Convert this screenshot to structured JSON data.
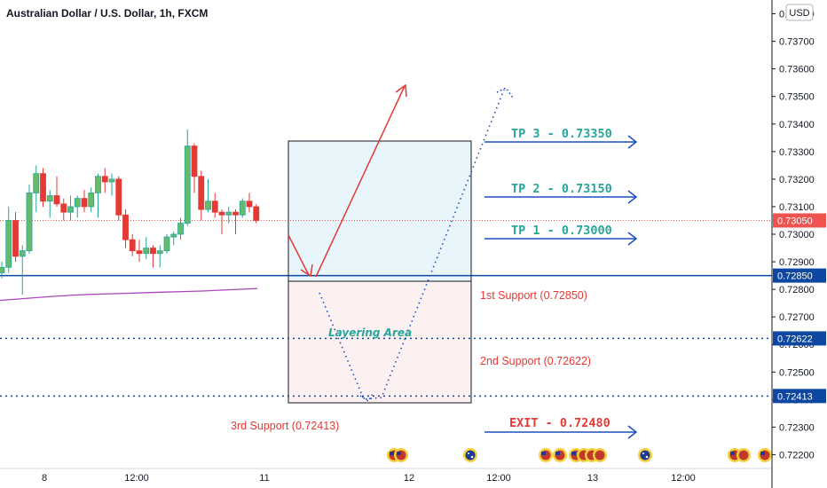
{
  "header": {
    "title": "Australian Dollar / U.S. Dollar, 1h, FXCM"
  },
  "currency_badge": "USD",
  "colors": {
    "up": "#26a69a",
    "up_fill": "#66bb6a",
    "down": "#e53935",
    "level_blue": "#0d47a1",
    "price_red": "#ef5350",
    "ma": "#ab47bc"
  },
  "chart_data": {
    "type": "candlestick",
    "symbol": "AUDUSD",
    "timeframe": "1h",
    "ylim": [
      0.7215,
      0.7385
    ],
    "y_ticks": [
      0.722,
      0.723,
      0.724,
      0.725,
      0.726,
      0.727,
      0.728,
      0.729,
      0.73,
      0.731,
      0.732,
      0.733,
      0.734,
      0.735,
      0.736,
      0.737,
      0.738
    ],
    "y_tick_labels": [
      "0.72200",
      "0.72300",
      "0.72400",
      "0.72500",
      "0.72600",
      "0.72700",
      "0.72800",
      "0.72900",
      "0.73000",
      "0.73100",
      "0.73200",
      "0.73300",
      "0.73400",
      "0.73500",
      "0.73600",
      "0.73700",
      "0.73800"
    ],
    "x_tick_labels": [
      "8",
      "12:00",
      "11",
      "12",
      "12:00",
      "13",
      "12:00"
    ],
    "candles": [
      {
        "o": 0.7286,
        "h": 0.729,
        "l": 0.7284,
        "c": 0.7288
      },
      {
        "o": 0.7288,
        "h": 0.731,
        "l": 0.7286,
        "c": 0.7305
      },
      {
        "o": 0.7305,
        "h": 0.7308,
        "l": 0.729,
        "c": 0.7292
      },
      {
        "o": 0.7292,
        "h": 0.7296,
        "l": 0.7278,
        "c": 0.7294
      },
      {
        "o": 0.7294,
        "h": 0.7318,
        "l": 0.7293,
        "c": 0.7315
      },
      {
        "o": 0.7315,
        "h": 0.7325,
        "l": 0.7308,
        "c": 0.7322
      },
      {
        "o": 0.7322,
        "h": 0.7324,
        "l": 0.731,
        "c": 0.7312
      },
      {
        "o": 0.7312,
        "h": 0.7316,
        "l": 0.7306,
        "c": 0.7314
      },
      {
        "o": 0.7314,
        "h": 0.7321,
        "l": 0.731,
        "c": 0.7311
      },
      {
        "o": 0.7311,
        "h": 0.7313,
        "l": 0.7305,
        "c": 0.7308
      },
      {
        "o": 0.7308,
        "h": 0.7314,
        "l": 0.7305,
        "c": 0.731
      },
      {
        "o": 0.731,
        "h": 0.7314,
        "l": 0.7306,
        "c": 0.7313
      },
      {
        "o": 0.7313,
        "h": 0.7316,
        "l": 0.7308,
        "c": 0.731
      },
      {
        "o": 0.731,
        "h": 0.7317,
        "l": 0.7308,
        "c": 0.7315
      },
      {
        "o": 0.7315,
        "h": 0.7322,
        "l": 0.7306,
        "c": 0.7321
      },
      {
        "o": 0.7321,
        "h": 0.7324,
        "l": 0.7315,
        "c": 0.7319
      },
      {
        "o": 0.7319,
        "h": 0.7322,
        "l": 0.7314,
        "c": 0.732
      },
      {
        "o": 0.732,
        "h": 0.7321,
        "l": 0.7305,
        "c": 0.7307
      },
      {
        "o": 0.7307,
        "h": 0.7309,
        "l": 0.7295,
        "c": 0.7298
      },
      {
        "o": 0.7298,
        "h": 0.73,
        "l": 0.7292,
        "c": 0.7294
      },
      {
        "o": 0.7294,
        "h": 0.7298,
        "l": 0.729,
        "c": 0.7293
      },
      {
        "o": 0.7293,
        "h": 0.7299,
        "l": 0.7291,
        "c": 0.7295
      },
      {
        "o": 0.7295,
        "h": 0.7296,
        "l": 0.7288,
        "c": 0.7293
      },
      {
        "o": 0.7293,
        "h": 0.7296,
        "l": 0.7288,
        "c": 0.7294
      },
      {
        "o": 0.7294,
        "h": 0.73,
        "l": 0.7293,
        "c": 0.7299
      },
      {
        "o": 0.7299,
        "h": 0.7301,
        "l": 0.7296,
        "c": 0.73
      },
      {
        "o": 0.73,
        "h": 0.7306,
        "l": 0.7298,
        "c": 0.7304
      },
      {
        "o": 0.7304,
        "h": 0.7338,
        "l": 0.7303,
        "c": 0.7332
      },
      {
        "o": 0.7332,
        "h": 0.7333,
        "l": 0.7315,
        "c": 0.7321
      },
      {
        "o": 0.7321,
        "h": 0.7323,
        "l": 0.7305,
        "c": 0.7309
      },
      {
        "o": 0.7309,
        "h": 0.732,
        "l": 0.7308,
        "c": 0.7312
      },
      {
        "o": 0.7312,
        "h": 0.7315,
        "l": 0.7306,
        "c": 0.7308
      },
      {
        "o": 0.7308,
        "h": 0.7309,
        "l": 0.73,
        "c": 0.7307
      },
      {
        "o": 0.7307,
        "h": 0.731,
        "l": 0.7304,
        "c": 0.7308
      },
      {
        "o": 0.7308,
        "h": 0.7309,
        "l": 0.73,
        "c": 0.7307
      },
      {
        "o": 0.7307,
        "h": 0.7313,
        "l": 0.7306,
        "c": 0.7312
      },
      {
        "o": 0.7312,
        "h": 0.7315,
        "l": 0.7308,
        "c": 0.731
      },
      {
        "o": 0.731,
        "h": 0.7311,
        "l": 0.7304,
        "c": 0.7305
      }
    ],
    "moving_average": [
      0.7276,
      0.72765,
      0.7277,
      0.72775,
      0.72779,
      0.72782,
      0.72784,
      0.72786,
      0.72788,
      0.7279,
      0.72792,
      0.72794,
      0.72797,
      0.728,
      0.72803
    ],
    "current_price": {
      "value": 0.7305,
      "label": "0.73050"
    },
    "levels": [
      {
        "name": "support-1",
        "value": 0.7285,
        "label": "0.72850",
        "style": "solid"
      },
      {
        "name": "support-2",
        "value": 0.72622,
        "label": "0.72622",
        "style": "dotted"
      },
      {
        "name": "support-3",
        "value": 0.72413,
        "label": "0.72413",
        "style": "dotted"
      }
    ],
    "annotations": {
      "tp3": "TP 3 - 0.73350",
      "tp2": "TP 2 - 0.73150",
      "tp1": "TP 1 - 0.73000",
      "exit": "EXIT - 0.72480",
      "support1": "1st Support (0.72850)",
      "support2": "2nd Support (0.72622)",
      "support3": "3rd Support (0.72413)",
      "layering": "Layering Area"
    },
    "legend": "none",
    "grid": false
  }
}
